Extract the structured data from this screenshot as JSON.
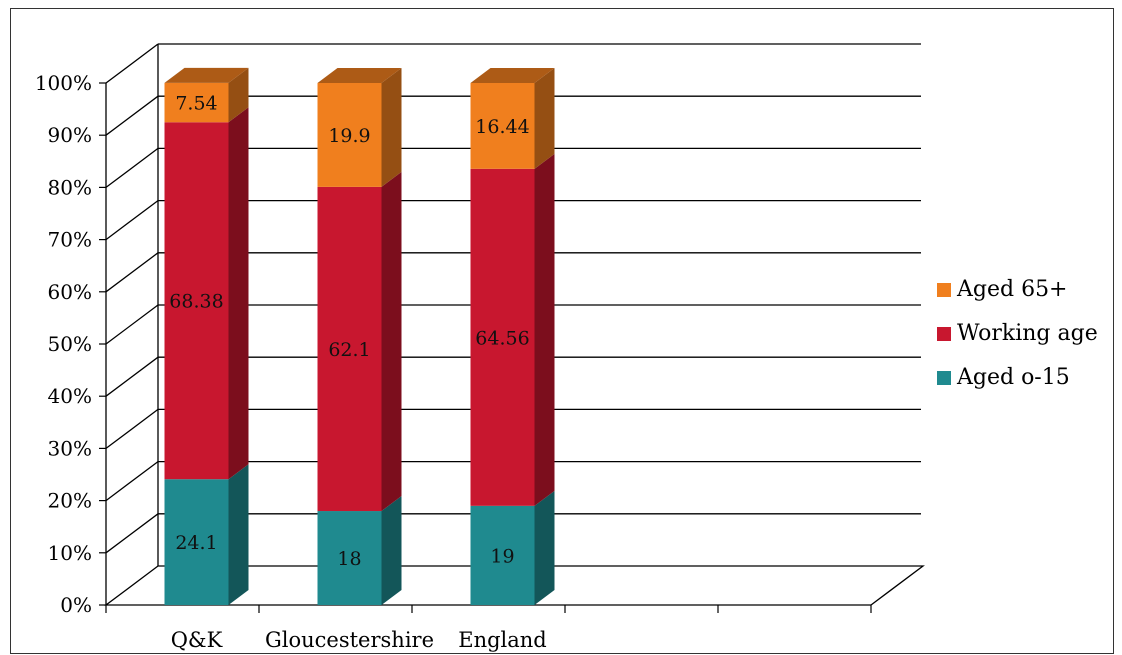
{
  "chart_data": {
    "type": "bar",
    "stacked": true,
    "three_d": true,
    "categories": [
      "Q&K",
      "Gloucestershire",
      "England"
    ],
    "series": [
      {
        "name": "Aged 0-15",
        "label": "Aged o-15",
        "color": "#1f8a8f",
        "values": [
          24.1,
          18,
          19
        ],
        "value_labels": [
          "24.1",
          "18",
          "19"
        ]
      },
      {
        "name": "Working age",
        "label": "Working age",
        "color": "#c8172f",
        "values": [
          68.38,
          62.1,
          64.56
        ],
        "value_labels": [
          "68.38",
          "62.1",
          "64.56"
        ]
      },
      {
        "name": "Aged 65+",
        "label": "Aged 65+",
        "color": "#f07f1e",
        "values": [
          7.54,
          19.9,
          16.44
        ],
        "value_labels": [
          "7.54",
          "19.9",
          "16.44"
        ]
      }
    ],
    "y_ticks": [
      "0%",
      "10%",
      "20%",
      "30%",
      "40%",
      "50%",
      "60%",
      "70%",
      "80%",
      "90%",
      "100%"
    ],
    "ylim": [
      0,
      100
    ],
    "grid": true,
    "legend_position": "right",
    "legend_order": [
      "Aged 65+",
      "Working age",
      "Aged 0-15"
    ]
  }
}
